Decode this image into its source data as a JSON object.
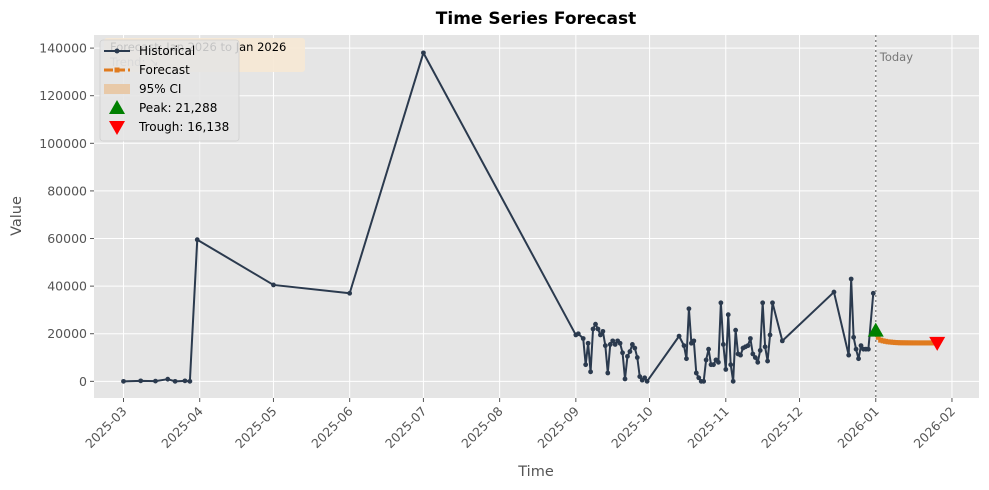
{
  "chart_data": {
    "type": "line",
    "title": "Time Series Forecast",
    "xlabel": "Time",
    "ylabel": "Value",
    "xlim": [
      "2025-02-17",
      "2026-02-12"
    ],
    "ylim": [
      -7000,
      145500
    ],
    "x_ticks": [
      "2025-03-01",
      "2025-04-01",
      "2025-05-01",
      "2025-06-01",
      "2025-07-01",
      "2025-08-01",
      "2025-09-01",
      "2025-10-01",
      "2025-11-01",
      "2025-12-01",
      "2026-01-01",
      "2026-02-01"
    ],
    "x_tick_labels": [
      "2025-03",
      "2025-04",
      "2025-05",
      "2025-06",
      "2025-07",
      "2025-08",
      "2025-09",
      "2025-10",
      "2025-11",
      "2025-12",
      "2026-01",
      "2026-02"
    ],
    "y_ticks": [
      0,
      20000,
      40000,
      60000,
      80000,
      100000,
      120000,
      140000
    ],
    "y_tick_labels": [
      "0",
      "20000",
      "40000",
      "60000",
      "80000",
      "100000",
      "120000",
      "140000"
    ],
    "grid": true,
    "legend_position": "top-left",
    "series": [
      {
        "name": "Historical",
        "color": "#2b3a4e",
        "marker": "circle",
        "points": [
          [
            "2025-03-01",
            0
          ],
          [
            "2025-03-08",
            200
          ],
          [
            "2025-03-14",
            100
          ],
          [
            "2025-03-19",
            900
          ],
          [
            "2025-03-22",
            0
          ],
          [
            "2025-03-26",
            200
          ],
          [
            "2025-03-28",
            0
          ],
          [
            "2025-03-31",
            59500
          ],
          [
            "2025-05-01",
            40500
          ],
          [
            "2025-06-01",
            37000
          ],
          [
            "2025-07-01",
            138000
          ],
          [
            "2025-09-01",
            19500
          ],
          [
            "2025-09-02",
            20000
          ],
          [
            "2025-09-04",
            18000
          ],
          [
            "2025-09-05",
            7000
          ],
          [
            "2025-09-06",
            16000
          ],
          [
            "2025-09-07",
            4000
          ],
          [
            "2025-09-08",
            22000
          ],
          [
            "2025-09-09",
            24000
          ],
          [
            "2025-09-10",
            22000
          ],
          [
            "2025-09-11",
            19500
          ],
          [
            "2025-09-12",
            21000
          ],
          [
            "2025-09-13",
            15000
          ],
          [
            "2025-09-14",
            3500
          ],
          [
            "2025-09-15",
            15500
          ],
          [
            "2025-09-16",
            17000
          ],
          [
            "2025-09-17",
            15500
          ],
          [
            "2025-09-18",
            17000
          ],
          [
            "2025-09-19",
            16000
          ],
          [
            "2025-09-20",
            12000
          ],
          [
            "2025-09-21",
            1000
          ],
          [
            "2025-09-22",
            10500
          ],
          [
            "2025-09-23",
            12500
          ],
          [
            "2025-09-24",
            15500
          ],
          [
            "2025-09-25",
            14000
          ],
          [
            "2025-09-26",
            10000
          ],
          [
            "2025-09-27",
            2000
          ],
          [
            "2025-09-28",
            500
          ],
          [
            "2025-09-29",
            1500
          ],
          [
            "2025-09-30",
            0
          ],
          [
            "2025-10-13",
            19000
          ],
          [
            "2025-10-15",
            15000
          ],
          [
            "2025-10-16",
            9500
          ],
          [
            "2025-10-17",
            30500
          ],
          [
            "2025-10-18",
            16000
          ],
          [
            "2025-10-19",
            17000
          ],
          [
            "2025-10-20",
            3500
          ],
          [
            "2025-10-21",
            1500
          ],
          [
            "2025-10-22",
            0
          ],
          [
            "2025-10-23",
            0
          ],
          [
            "2025-10-24",
            9000
          ],
          [
            "2025-10-25",
            13500
          ],
          [
            "2025-10-26",
            7000
          ],
          [
            "2025-10-27",
            7000
          ],
          [
            "2025-10-28",
            9000
          ],
          [
            "2025-10-29",
            8000
          ],
          [
            "2025-10-30",
            33000
          ],
          [
            "2025-10-31",
            15500
          ],
          [
            "2025-11-01",
            5000
          ],
          [
            "2025-11-02",
            28000
          ],
          [
            "2025-11-03",
            7000
          ],
          [
            "2025-11-04",
            0
          ],
          [
            "2025-11-05",
            21500
          ],
          [
            "2025-11-06",
            11500
          ],
          [
            "2025-11-07",
            11000
          ],
          [
            "2025-11-08",
            14000
          ],
          [
            "2025-11-09",
            14500
          ],
          [
            "2025-11-10",
            15000
          ],
          [
            "2025-11-11",
            18000
          ],
          [
            "2025-11-12",
            11500
          ],
          [
            "2025-11-13",
            10000
          ],
          [
            "2025-11-14",
            8000
          ],
          [
            "2025-11-15",
            13000
          ],
          [
            "2025-11-16",
            33000
          ],
          [
            "2025-11-17",
            14500
          ],
          [
            "2025-11-18",
            8500
          ],
          [
            "2025-11-19",
            19500
          ],
          [
            "2025-11-20",
            33000
          ],
          [
            "2025-11-24",
            17000
          ],
          [
            "2025-12-15",
            37500
          ],
          [
            "2025-12-21",
            11000
          ],
          [
            "2025-12-22",
            43000
          ],
          [
            "2025-12-23",
            18500
          ],
          [
            "2025-12-24",
            13500
          ],
          [
            "2025-12-25",
            9500
          ],
          [
            "2025-12-26",
            15000
          ],
          [
            "2025-12-27",
            13500
          ],
          [
            "2025-12-28",
            13500
          ],
          [
            "2025-12-29",
            13500
          ],
          [
            "2025-12-31",
            37000
          ]
        ]
      },
      {
        "name": "Forecast",
        "color": "#e07b1f",
        "marker": "square",
        "points": [
          [
            "2026-01-01",
            21288
          ],
          [
            "2026-01-02",
            18500
          ],
          [
            "2026-01-03",
            17300
          ],
          [
            "2026-01-04",
            17000
          ],
          [
            "2026-01-05",
            16800
          ],
          [
            "2026-01-06",
            16600
          ],
          [
            "2026-01-07",
            16500
          ],
          [
            "2026-01-08",
            16400
          ],
          [
            "2026-01-09",
            16300
          ],
          [
            "2026-01-10",
            16250
          ],
          [
            "2026-01-11",
            16200
          ],
          [
            "2026-01-12",
            16200
          ],
          [
            "2026-01-13",
            16180
          ],
          [
            "2026-01-14",
            16170
          ],
          [
            "2026-01-15",
            16160
          ],
          [
            "2026-01-16",
            16150
          ],
          [
            "2026-01-17",
            16150
          ],
          [
            "2026-01-18",
            16145
          ],
          [
            "2026-01-19",
            16140
          ],
          [
            "2026-01-20",
            16140
          ],
          [
            "2026-01-21",
            16140
          ],
          [
            "2026-01-22",
            16139
          ],
          [
            "2026-01-23",
            16138
          ],
          [
            "2026-01-24",
            16138
          ],
          [
            "2026-01-25",
            16138
          ],
          [
            "2026-01-26",
            16138
          ]
        ]
      }
    ],
    "confidence_band": {
      "name": "95% CI",
      "color": "#e8c9a8",
      "upper": [
        [
          "2026-01-01",
          21800
        ],
        [
          "2026-01-03",
          18200
        ],
        [
          "2026-01-08",
          17200
        ],
        [
          "2026-01-15",
          16900
        ],
        [
          "2026-01-26",
          16800
        ]
      ],
      "lower": [
        [
          "2026-01-01",
          20700
        ],
        [
          "2026-01-03",
          16400
        ],
        [
          "2026-01-08",
          15600
        ],
        [
          "2026-01-15",
          15400
        ],
        [
          "2026-01-26",
          15400
        ]
      ]
    },
    "peak": {
      "label": "Peak: 21,288",
      "x": "2026-01-01",
      "y": 21288,
      "color": "#008000"
    },
    "trough": {
      "label": "Trough: 16,138",
      "x": "2026-01-26",
      "y": 16138,
      "color": "#ff0000"
    },
    "today_line": {
      "label": "Today",
      "x": "2026-01-01"
    },
    "annotation_box": {
      "text": "Forecast: Jan 2026 to Jan 2026",
      "trend_text": "Trend: ↘"
    }
  }
}
